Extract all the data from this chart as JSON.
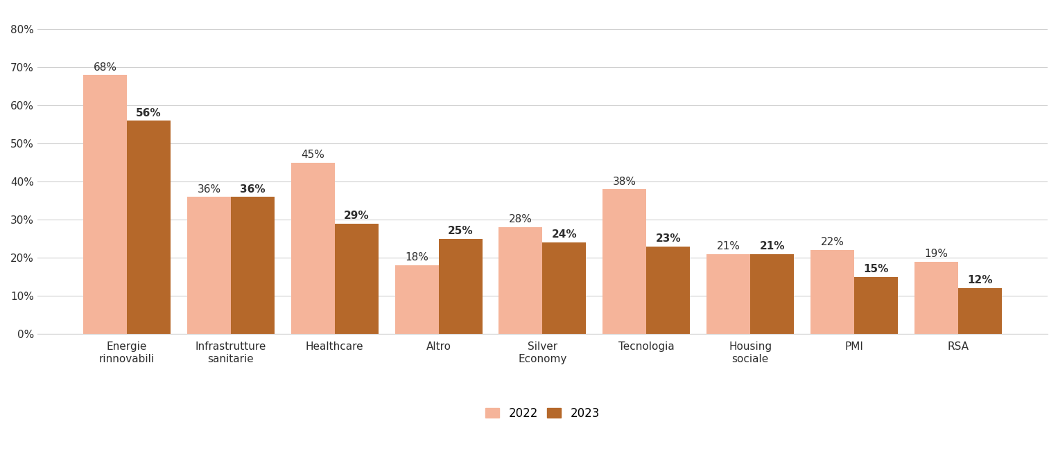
{
  "categories": [
    "Energie\nrinnovabili",
    "Infrastrutture\nsanitarie",
    "Healthcare",
    "Altro",
    "Silver\nEconomy",
    "Tecnologia",
    "Housing\nsociale",
    "PMI",
    "RSA"
  ],
  "values_2022": [
    0.68,
    0.36,
    0.45,
    0.18,
    0.28,
    0.38,
    0.21,
    0.22,
    0.19
  ],
  "values_2023": [
    0.56,
    0.36,
    0.29,
    0.25,
    0.24,
    0.23,
    0.21,
    0.15,
    0.12
  ],
  "labels_2022": [
    "68%",
    "36%",
    "45%",
    "18%",
    "28%",
    "38%",
    "21%",
    "22%",
    "19%"
  ],
  "labels_2023": [
    "56%",
    "36%",
    "29%",
    "25%",
    "24%",
    "23%",
    "21%",
    "15%",
    "12%"
  ],
  "color_2022": "#F5B49A",
  "color_2023": "#B5682A",
  "bar_width": 0.42,
  "ylim": [
    0,
    0.85
  ],
  "yticks": [
    0,
    0.1,
    0.2,
    0.3,
    0.4,
    0.5,
    0.6,
    0.7,
    0.8
  ],
  "ytick_labels": [
    "0%",
    "10%",
    "20%",
    "30%",
    "40%",
    "50%",
    "60%",
    "70%",
    "80%"
  ],
  "legend_2022": "2022",
  "legend_2023": "2023",
  "background_color": "#ffffff",
  "grid_color": "#d0d0d0",
  "label_fontsize": 11,
  "tick_fontsize": 11,
  "legend_fontsize": 12,
  "label_color": "#2d2d2d"
}
